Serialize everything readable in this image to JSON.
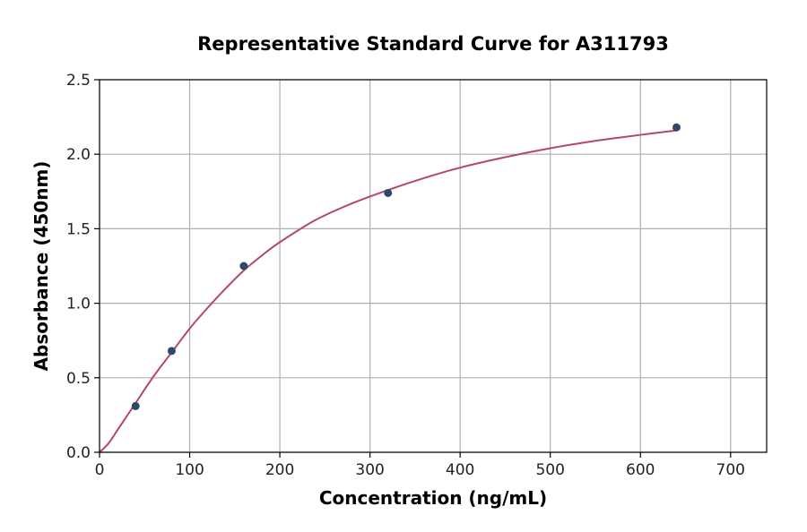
{
  "chart_data": {
    "type": "scatter",
    "title": "Representative Standard Curve for A311793",
    "xlabel": "Concentration (ng/mL)",
    "ylabel": "Absorbance (450nm)",
    "xlim": [
      0,
      740
    ],
    "ylim": [
      0,
      2.5
    ],
    "xticks": [
      0,
      100,
      200,
      300,
      400,
      500,
      600,
      700
    ],
    "yticks": [
      0.0,
      0.5,
      1.0,
      1.5,
      2.0,
      2.5
    ],
    "xtick_labels": [
      "0",
      "100",
      "200",
      "300",
      "400",
      "500",
      "600",
      "700"
    ],
    "ytick_labels": [
      "0.0",
      "0.5",
      "1.0",
      "1.5",
      "2.0",
      "2.5"
    ],
    "grid": true,
    "series": [
      {
        "kind": "points",
        "x": [
          40,
          80,
          160,
          320,
          640
        ],
        "y": [
          0.31,
          0.68,
          1.25,
          1.74,
          2.18
        ]
      },
      {
        "kind": "fitted-curve",
        "x": [
          0,
          10,
          20,
          30,
          40,
          60,
          80,
          100,
          120,
          140,
          160,
          180,
          200,
          240,
          280,
          320,
          360,
          400,
          450,
          500,
          550,
          600,
          640
        ],
        "y": [
          0.0,
          0.06,
          0.15,
          0.24,
          0.33,
          0.51,
          0.67,
          0.83,
          0.97,
          1.1,
          1.22,
          1.32,
          1.41,
          1.56,
          1.67,
          1.76,
          1.84,
          1.91,
          1.98,
          2.04,
          2.09,
          2.13,
          2.16
        ]
      }
    ],
    "colors": {
      "points": "#2b4a6b",
      "curve": "#b5476a"
    }
  }
}
